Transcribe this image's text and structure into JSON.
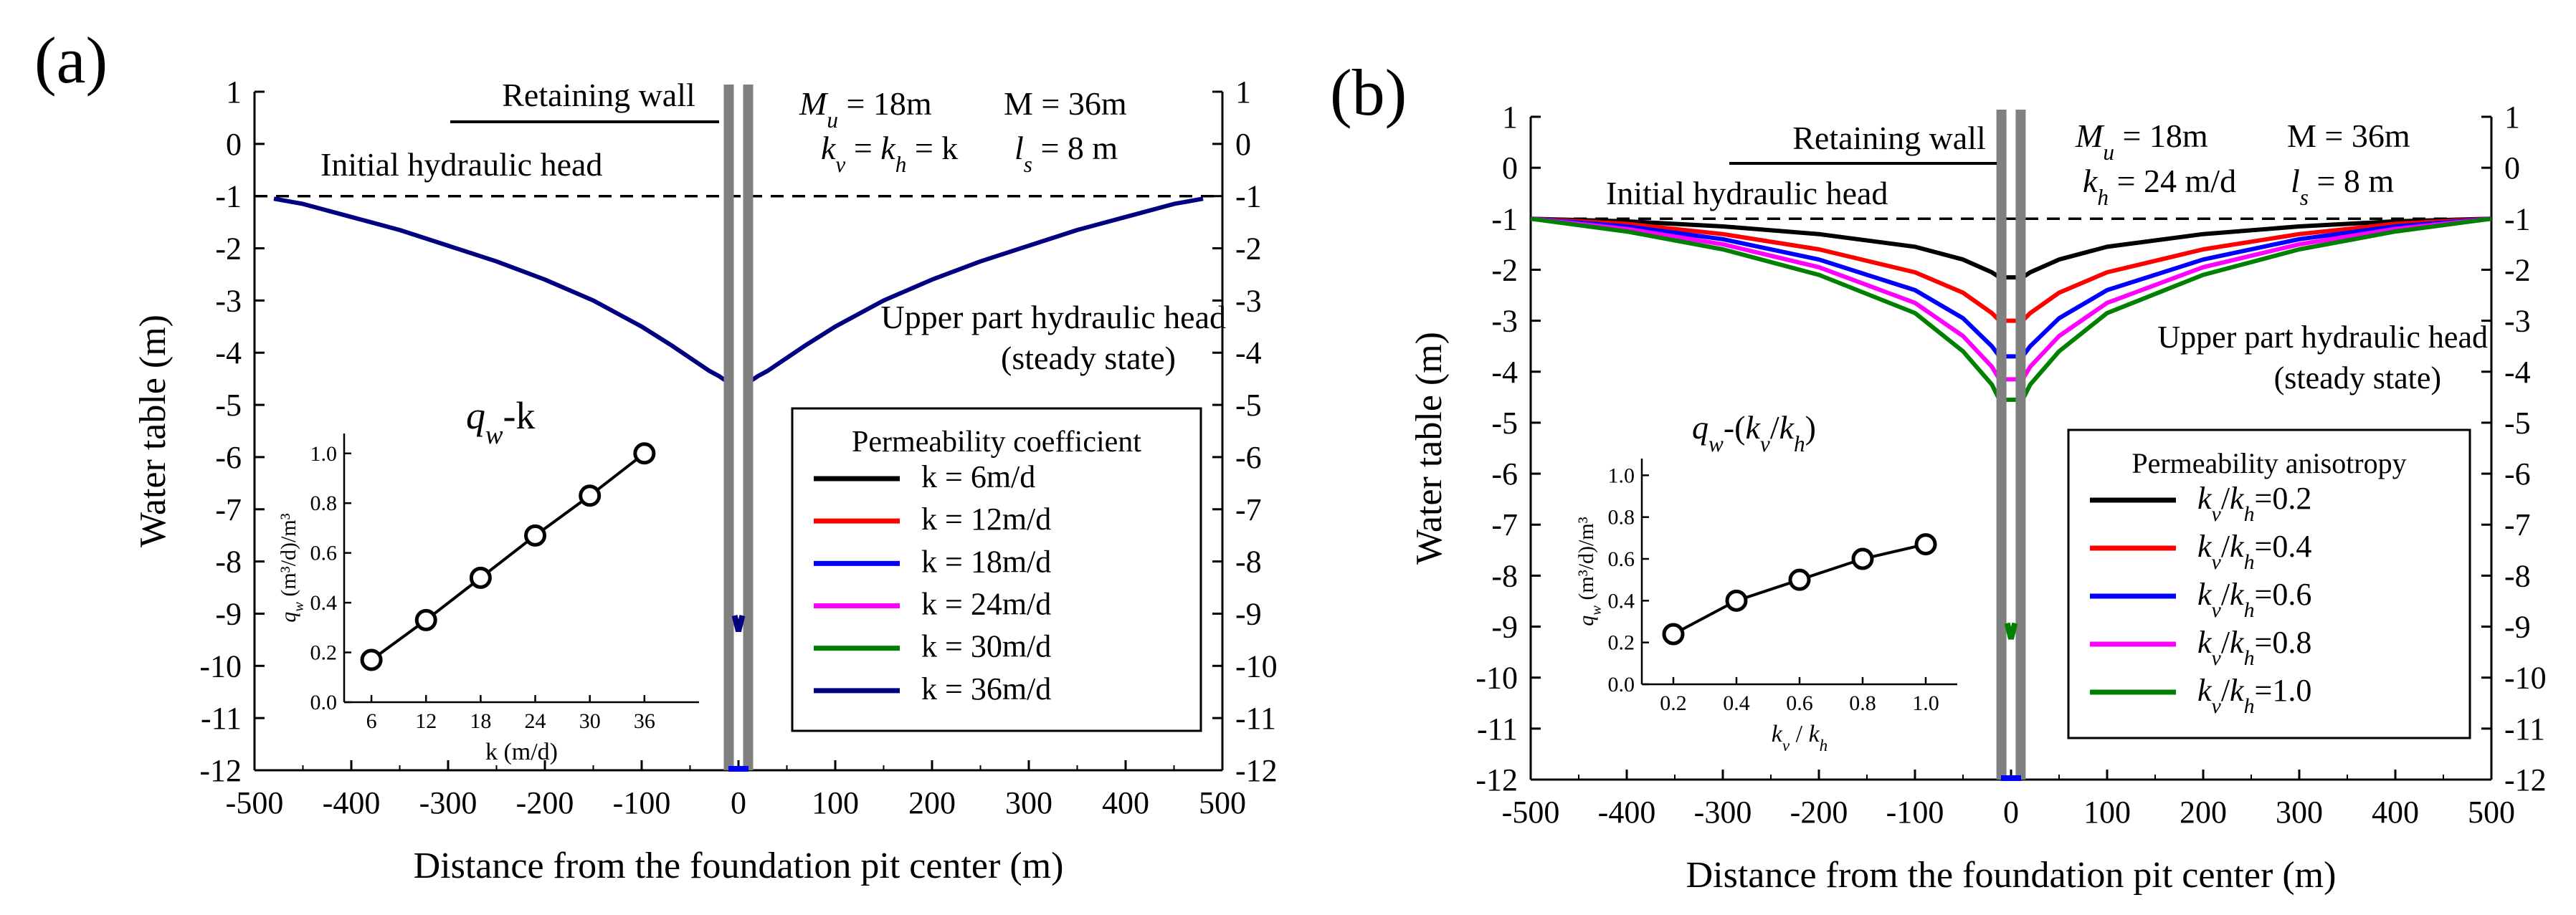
{
  "figure": {
    "panels": [
      {
        "id": "a",
        "label": "(a)",
        "xlabel": "Distance from the foundation pit center (m)",
        "ylabel": "Water table (m)",
        "annotations": {
          "retaining_wall": "Retaining wall",
          "initial_head": "Initial hydraulic head",
          "upper_head_1": "Upper part hydraulic head",
          "upper_head_2": "(steady state)",
          "p1": "M_u = 18m",
          "p2": "M = 36m",
          "p3": "k_v = k_h = k",
          "p4": "l_s = 8 m",
          "inset_title": "q_w-k"
        },
        "legend_title": "Permeability coefficient",
        "inset": {
          "xlabel": "k (m/d)",
          "ylabel": "q_w (m³/d)/m³"
        }
      },
      {
        "id": "b",
        "label": "(b)",
        "xlabel": "Distance from the foundation pit center (m)",
        "ylabel": "Water table (m)",
        "annotations": {
          "retaining_wall": "Retaining wall",
          "initial_head": "Initial hydraulic head",
          "upper_head_1": "Upper part hydraulic head",
          "upper_head_2": "(steady state)",
          "p1": "M_u = 18m",
          "p2": "M = 36m",
          "p3": "k_h = 24 m/d",
          "p4": "l_s = 8 m",
          "inset_title": "q_w-(k_v/k_h)"
        },
        "legend_title": "Permeability anisotropy",
        "inset": {
          "xlabel": "k_v / k_h",
          "ylabel": "q_w (m³/d)/m³"
        }
      }
    ]
  },
  "colors": {
    "black": "#000000",
    "red": "#ff0000",
    "blue": "#0000ff",
    "magenta": "#ff00ff",
    "green": "#008000",
    "navy": "#000080",
    "wall": "#808080"
  },
  "chart_data": [
    {
      "type": "line",
      "panel": "a",
      "title": "",
      "xlabel": "Distance from the foundation pit center (m)",
      "ylabel": "Water table (m)",
      "xlim": [
        -500,
        500
      ],
      "ylim": [
        -12,
        1
      ],
      "xticks": [
        -500,
        -400,
        -300,
        -200,
        -100,
        0,
        100,
        200,
        300,
        400,
        500
      ],
      "yticks": [
        1,
        0,
        -1,
        -2,
        -3,
        -4,
        -5,
        -6,
        -7,
        -8,
        -9,
        -10,
        -11,
        -12
      ],
      "initial_head": -1,
      "wall_x": [
        -10,
        10
      ],
      "legend": [
        {
          "label": "k = 6m/d",
          "color": "#000000"
        },
        {
          "label": "k = 12m/d",
          "color": "#ff0000"
        },
        {
          "label": "k = 18m/d",
          "color": "#0000ff"
        },
        {
          "label": "k = 24m/d",
          "color": "#ff00ff"
        },
        {
          "label": "k = 30m/d",
          "color": "#008000"
        },
        {
          "label": "k = 36m/d",
          "color": "#000080"
        }
      ],
      "series": [
        {
          "name": "k = 36m/d (all cases coincide)",
          "color": "#000080",
          "x": [
            -480,
            -450,
            -400,
            -350,
            -300,
            -250,
            -200,
            -150,
            -100,
            -70,
            -50,
            -30,
            -20,
            -12
          ],
          "y": [
            -1.05,
            -1.15,
            -1.4,
            -1.65,
            -1.95,
            -2.25,
            -2.6,
            -3.0,
            -3.5,
            -3.85,
            -4.1,
            -4.35,
            -4.45,
            -4.55
          ]
        },
        {
          "name": "k = 36m/d right",
          "color": "#000080",
          "x": [
            12,
            20,
            30,
            50,
            70,
            100,
            150,
            200,
            250,
            300,
            350,
            400,
            450,
            480
          ],
          "y": [
            -4.55,
            -4.45,
            -4.35,
            -4.1,
            -3.85,
            -3.5,
            -3.0,
            -2.6,
            -2.25,
            -1.95,
            -1.65,
            -1.4,
            -1.15,
            -1.05
          ]
        }
      ],
      "inside_marker_y": -9.2,
      "inset": {
        "type": "line",
        "title": "q_w-k",
        "xlabel": "k (m/d)",
        "ylabel": "q_w (m³/d)/m³",
        "x": [
          6,
          12,
          18,
          24,
          30,
          36
        ],
        "y": [
          0.17,
          0.33,
          0.5,
          0.67,
          0.83,
          1.0
        ],
        "xlim": [
          3,
          42
        ],
        "ylim": [
          0,
          1.08
        ],
        "xticks": [
          6,
          12,
          18,
          24,
          30,
          36
        ],
        "yticks": [
          0.0,
          0.2,
          0.4,
          0.6,
          0.8,
          1.0
        ]
      }
    },
    {
      "type": "line",
      "panel": "b",
      "title": "",
      "xlabel": "Distance from the foundation pit center (m)",
      "ylabel": "Water table (m)",
      "xlim": [
        -500,
        500
      ],
      "ylim": [
        -12,
        1
      ],
      "xticks": [
        -500,
        -400,
        -300,
        -200,
        -100,
        0,
        100,
        200,
        300,
        400,
        500
      ],
      "yticks": [
        1,
        0,
        -1,
        -2,
        -3,
        -4,
        -5,
        -6,
        -7,
        -8,
        -9,
        -10,
        -11,
        -12
      ],
      "initial_head": -1,
      "wall_x": [
        -10,
        10
      ],
      "legend": [
        {
          "label": "k_v/k_h=0.2",
          "color": "#000000"
        },
        {
          "label": "k_v/k_h=0.4",
          "color": "#ff0000"
        },
        {
          "label": "k_v/k_h=0.6",
          "color": "#0000ff"
        },
        {
          "label": "k_v/k_h=0.8",
          "color": "#ff00ff"
        },
        {
          "label": "k_v/k_h=1.0",
          "color": "#008000"
        }
      ],
      "series": [
        {
          "name": "k_v/k_h=0.2",
          "color": "#000000",
          "x": [
            -500,
            -400,
            -300,
            -200,
            -100,
            -50,
            -20,
            -12,
            12,
            20,
            50,
            100,
            200,
            300,
            400,
            500
          ],
          "y": [
            -1.0,
            -1.05,
            -1.15,
            -1.3,
            -1.55,
            -1.8,
            -2.05,
            -2.15,
            -2.15,
            -2.05,
            -1.8,
            -1.55,
            -1.3,
            -1.15,
            -1.05,
            -1.0
          ]
        },
        {
          "name": "k_v/k_h=0.4",
          "color": "#ff0000",
          "x": [
            -500,
            -400,
            -300,
            -200,
            -100,
            -50,
            -20,
            -12,
            12,
            20,
            50,
            100,
            200,
            300,
            400,
            500
          ],
          "y": [
            -1.0,
            -1.1,
            -1.3,
            -1.6,
            -2.05,
            -2.45,
            -2.85,
            -3.0,
            -3.0,
            -2.85,
            -2.45,
            -2.05,
            -1.6,
            -1.3,
            -1.1,
            -1.0
          ]
        },
        {
          "name": "k_v/k_h=0.6",
          "color": "#0000ff",
          "x": [
            -500,
            -400,
            -300,
            -200,
            -100,
            -50,
            -20,
            -12,
            12,
            20,
            50,
            100,
            200,
            300,
            400,
            500
          ],
          "y": [
            -1.0,
            -1.15,
            -1.4,
            -1.8,
            -2.4,
            -2.95,
            -3.5,
            -3.7,
            -3.7,
            -3.5,
            -2.95,
            -2.4,
            -1.8,
            -1.4,
            -1.15,
            -1.0
          ]
        },
        {
          "name": "k_v/k_h=0.8",
          "color": "#ff00ff",
          "x": [
            -500,
            -400,
            -300,
            -200,
            -100,
            -50,
            -20,
            -12,
            12,
            20,
            50,
            100,
            200,
            300,
            400,
            500
          ],
          "y": [
            -1.0,
            -1.2,
            -1.5,
            -1.95,
            -2.65,
            -3.3,
            -3.9,
            -4.15,
            -4.15,
            -3.9,
            -3.3,
            -2.65,
            -1.95,
            -1.5,
            -1.2,
            -1.0
          ]
        },
        {
          "name": "k_v/k_h=1.0",
          "color": "#008000",
          "x": [
            -500,
            -400,
            -300,
            -200,
            -100,
            -50,
            -20,
            -12,
            12,
            20,
            50,
            100,
            200,
            300,
            400,
            500
          ],
          "y": [
            -1.0,
            -1.25,
            -1.6,
            -2.1,
            -2.85,
            -3.6,
            -4.25,
            -4.55,
            -4.55,
            -4.25,
            -3.6,
            -2.85,
            -2.1,
            -1.6,
            -1.25,
            -1.0
          ]
        }
      ],
      "inside_marker_y": -9.1,
      "inset": {
        "type": "line",
        "title": "q_w-(k_v/k_h)",
        "xlabel": "k_v / k_h",
        "ylabel": "q_w (m³/d)/m³",
        "x": [
          0.2,
          0.4,
          0.6,
          0.8,
          1.0
        ],
        "y": [
          0.24,
          0.4,
          0.5,
          0.6,
          0.67
        ],
        "xlim": [
          0.1,
          1.1
        ],
        "ylim": [
          0,
          1.08
        ],
        "xticks": [
          0.2,
          0.4,
          0.6,
          0.8,
          1.0
        ],
        "yticks": [
          0.0,
          0.2,
          0.4,
          0.6,
          0.8,
          1.0
        ]
      }
    }
  ]
}
